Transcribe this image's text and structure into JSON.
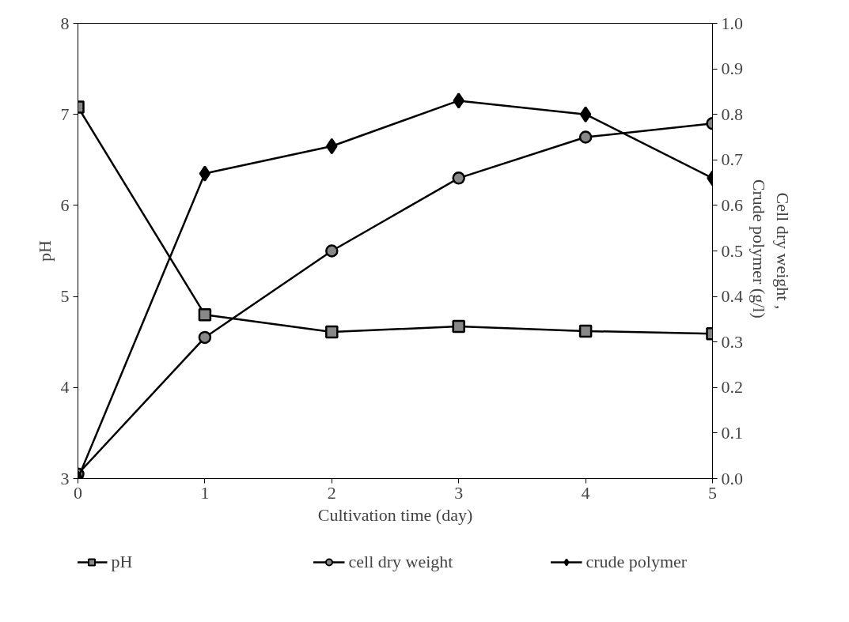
{
  "chart_data": {
    "type": "line",
    "xlabel": "Cultivation time (day)",
    "ylabel": "pH",
    "y2label": "Cell dry weight ,\nCrude polymer  (g/l)",
    "x": [
      0,
      1,
      2,
      3,
      4,
      5
    ],
    "xlim": [
      0,
      5
    ],
    "xticks": [
      0,
      1,
      2,
      3,
      4,
      5
    ],
    "ylim": [
      3,
      8
    ],
    "yticks": [
      3,
      4,
      5,
      6,
      7,
      8
    ],
    "y2lim": [
      0,
      1
    ],
    "y2ticks": [
      {
        "value": 0,
        "label": "0.0"
      },
      0.1,
      0.2,
      0.3,
      0.4,
      0.5,
      0.6,
      0.7,
      0.8,
      0.9,
      {
        "value": 1,
        "label": "1.0"
      }
    ],
    "grid": false,
    "legend": "bottom",
    "line_style": "solid",
    "series": [
      {
        "name": "pH",
        "color": "#000000",
        "marker": "square",
        "values": [
          7.08,
          4.8,
          4.61,
          4.67,
          4.62,
          4.59
        ]
      },
      {
        "name": "cell dry weight",
        "color": "#000000",
        "marker": "circle",
        "axis": "y2",
        "values": [
          0.01,
          0.31,
          0.5,
          0.66,
          0.75,
          0.78
        ]
      },
      {
        "name": "crude polymer",
        "color": "#000000",
        "marker": "diamond",
        "axis": "y2",
        "values": [
          0.0,
          0.67,
          0.73,
          0.83,
          0.8,
          0.66
        ]
      }
    ]
  }
}
